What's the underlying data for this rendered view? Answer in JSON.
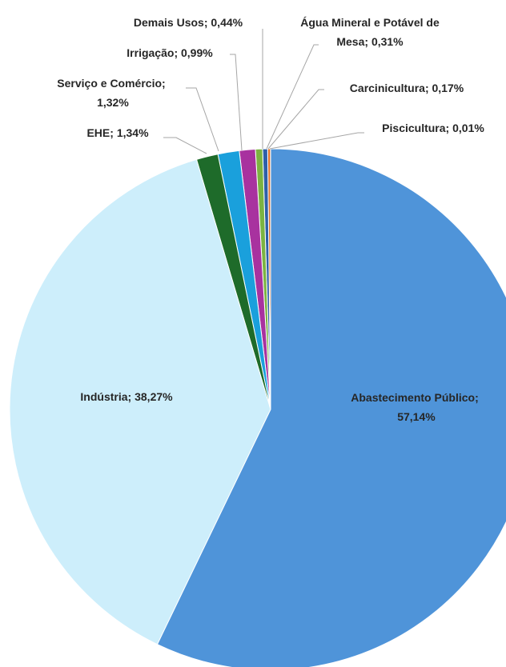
{
  "chart_data": {
    "type": "pie",
    "categories": [
      "Abastecimento Público",
      "Indústria",
      "EHE",
      "Serviço e Comércio",
      "Irrigação",
      "Demais Usos",
      "Água Mineral e Potável de Mesa",
      "Carcinicultura",
      "Piscicultura"
    ],
    "values": [
      57.14,
      38.27,
      1.34,
      1.32,
      0.99,
      0.44,
      0.31,
      0.17,
      0.01
    ],
    "value_labels": [
      "57,14%",
      "38,27%",
      "1,34%",
      "1,32%",
      "0,99%",
      "0,44%",
      "0,31%",
      "0,17%",
      "0,01%"
    ],
    "colors": [
      "#4f94d9",
      "#cdeefb",
      "#1e6b2a",
      "#1aa0dc",
      "#a8329f",
      "#7cb342",
      "#2e5fa8",
      "#e0702a",
      "#8b3a1a"
    ]
  }
}
